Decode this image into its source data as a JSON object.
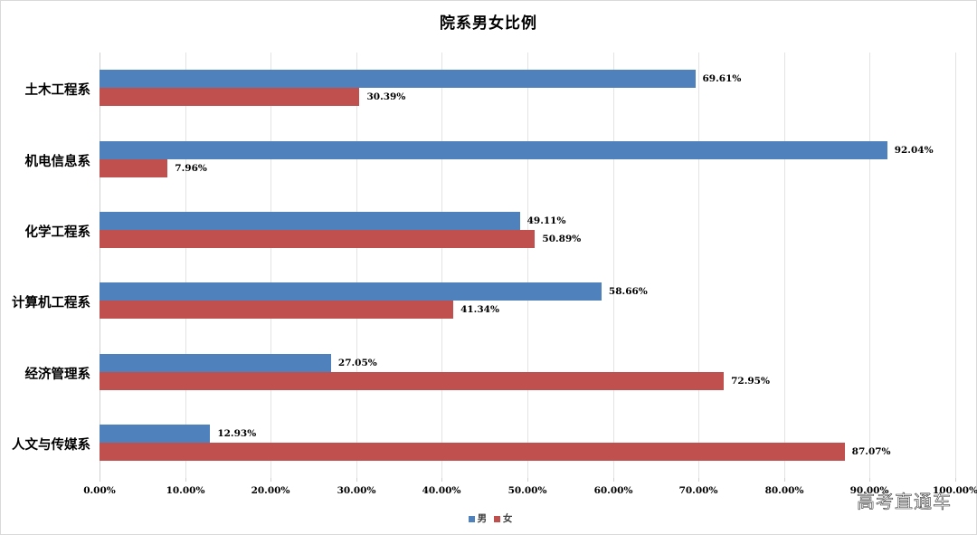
{
  "chart_data": {
    "type": "bar",
    "orientation": "horizontal",
    "title": "院系男女比例",
    "xlabel": "",
    "ylabel": "",
    "xlim": [
      0,
      100
    ],
    "x_ticks": [
      "0.00%",
      "10.00%",
      "20.00%",
      "30.00%",
      "40.00%",
      "50.00%",
      "60.00%",
      "70.00%",
      "80.00%",
      "90.00%",
      "100.00%"
    ],
    "grid": true,
    "legend_position": "bottom",
    "categories": [
      "土木工程系",
      "机电信息系",
      "化学工程系",
      "计算机工程系",
      "经济管理系",
      "人文与传媒系"
    ],
    "series": [
      {
        "name": "男",
        "color": "#4f81bd",
        "values": [
          69.61,
          92.04,
          49.11,
          58.66,
          27.05,
          12.93
        ],
        "labels": [
          "69.61%",
          "92.04%",
          "49.11%",
          "58.66%",
          "27.05%",
          "12.93%"
        ]
      },
      {
        "name": "女",
        "color": "#c0504d",
        "values": [
          30.39,
          7.96,
          50.89,
          41.34,
          72.95,
          87.07
        ],
        "labels": [
          "30.39%",
          "7.96%",
          "50.89%",
          "41.34%",
          "72.95%",
          "87.07%"
        ]
      }
    ]
  },
  "watermark": "高考直通车"
}
